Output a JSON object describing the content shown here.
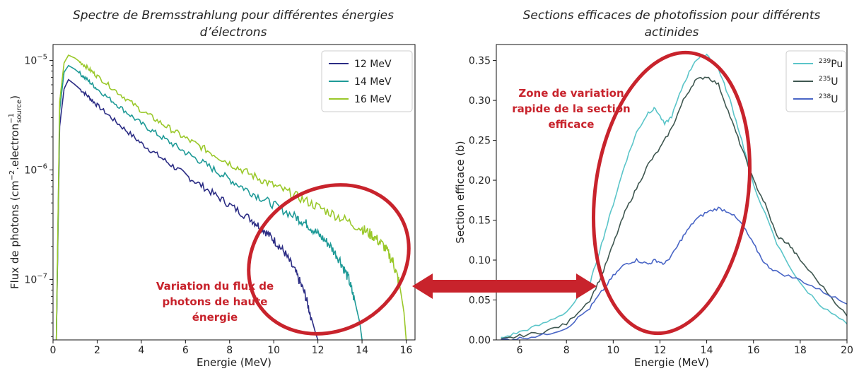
{
  "left_title": [
    "Spectre de Bremsstrahlung pour différentes énergies",
    "d’électrons"
  ],
  "right_title": [
    "Sections efficaces de photofission pour différents",
    "actinides"
  ],
  "annotations": {
    "left": [
      "Variation du flux de",
      "photons de haute",
      "énergie"
    ],
    "right": [
      "Zone de variation",
      "rapide de la section",
      "efficace"
    ],
    "color": "#c8232c"
  },
  "chart_data": [
    {
      "type": "line",
      "title": "Spectre de Bremsstrahlung pour différentes énergies d’électrons",
      "xlabel": "Energie (MeV)",
      "ylabel": "Flux de photons (cm",
      "ylabel_sup1": "−2",
      "ylabel_mid": ".electron",
      "ylabel_sub": "source",
      "ylabel_sup2": "−1",
      "ylabel_end": ")",
      "xlim": [
        0,
        16.4
      ],
      "ylim": [
        2.8e-08,
        1.4e-05
      ],
      "yscale": "log",
      "xticks": [
        0,
        2,
        4,
        6,
        8,
        10,
        12,
        14,
        16
      ],
      "yticks": [
        {
          "value": 1e-07,
          "mant": "10",
          "exp": "−7"
        },
        {
          "value": 1e-06,
          "mant": "10",
          "exp": "−6"
        },
        {
          "value": 1e-05,
          "mant": "10",
          "exp": "−5"
        }
      ],
      "legend": "top-right",
      "series": [
        {
          "name": "12 MeV",
          "color": "#2b2c84",
          "x": [
            0.15,
            0.3,
            0.5,
            0.7,
            1.0,
            1.5,
            2,
            3,
            4,
            5,
            6,
            7,
            8,
            9,
            9.5,
            10,
            10.5,
            11,
            11.4,
            11.7,
            11.9,
            12.0
          ],
          "y": [
            2.8e-08,
            2.5e-06,
            5.5e-06,
            6.7e-06,
            6e-06,
            4.9e-06,
            3.9e-06,
            2.6e-06,
            1.75e-06,
            1.25e-06,
            9e-07,
            6.6e-07,
            4.8e-07,
            3.5e-07,
            2.9e-07,
            2.3e-07,
            1.75e-07,
            1.15e-07,
            7.5e-08,
            4.5e-08,
            3.2e-08,
            2.8e-08
          ]
        },
        {
          "name": "14 MeV",
          "color": "#1e9a97",
          "x": [
            0.15,
            0.3,
            0.5,
            0.7,
            1.0,
            1.5,
            2,
            3,
            4,
            5,
            6,
            7,
            8,
            9,
            10,
            11,
            11.5,
            12,
            12.5,
            13,
            13.4,
            13.7,
            13.9,
            14.0
          ],
          "y": [
            2.8e-08,
            3.5e-06,
            7.8e-06,
            9e-06,
            8.3e-06,
            6.8e-06,
            5.5e-06,
            3.8e-06,
            2.65e-06,
            1.95e-06,
            1.45e-06,
            1.1e-06,
            8.2e-07,
            6.2e-07,
            4.8e-07,
            3.7e-07,
            3.2e-07,
            2.6e-07,
            2.1e-07,
            1.5e-07,
            1e-07,
            6e-08,
            4e-08,
            2.8e-08
          ]
        },
        {
          "name": "16 MeV",
          "color": "#9ac82a",
          "x": [
            0.15,
            0.3,
            0.5,
            0.7,
            1.0,
            1.5,
            2,
            3,
            4,
            5,
            6,
            7,
            8,
            9,
            10,
            11,
            12,
            13,
            14,
            14.5,
            15,
            15.4,
            15.7,
            15.9,
            16.0
          ],
          "y": [
            2.8e-08,
            4.2e-06,
            9.5e-06,
            1.12e-05,
            1.05e-05,
            8.8e-06,
            7.2e-06,
            5e-06,
            3.5e-06,
            2.6e-06,
            1.95e-06,
            1.5e-06,
            1.15e-06,
            9e-07,
            7.2e-07,
            5.8e-07,
            4.6e-07,
            3.7e-07,
            2.9e-07,
            2.5e-07,
            2e-07,
            1.45e-07,
            9e-08,
            5e-08,
            2.8e-08
          ]
        }
      ]
    },
    {
      "type": "line",
      "title": "Sections efficaces de photofission pour différents actinides",
      "xlabel": "Energie (MeV)",
      "ylabel": "Section efficace (b)",
      "xlim": [
        5,
        20
      ],
      "ylim": [
        0,
        0.37
      ],
      "xticks": [
        6,
        8,
        10,
        12,
        14,
        16,
        18,
        20
      ],
      "yticks": [
        0.0,
        0.05,
        0.1,
        0.15,
        0.2,
        0.25,
        0.3,
        0.35
      ],
      "legend": "top-right",
      "series": [
        {
          "name": "Pu",
          "sup": "239",
          "color": "#5bc5c9",
          "x": [
            5.2,
            6,
            7,
            8,
            9,
            9.5,
            10,
            10.5,
            11,
            11.5,
            11.8,
            12.2,
            12.5,
            13,
            13.5,
            14,
            14.5,
            15,
            15.5,
            16,
            17,
            18,
            19,
            20
          ],
          "y": [
            0.002,
            0.01,
            0.02,
            0.035,
            0.07,
            0.12,
            0.17,
            0.22,
            0.26,
            0.285,
            0.29,
            0.27,
            0.28,
            0.32,
            0.35,
            0.358,
            0.34,
            0.3,
            0.25,
            0.195,
            0.12,
            0.07,
            0.04,
            0.02
          ]
        },
        {
          "name": "U",
          "sup": "235",
          "color": "#3f5750",
          "x": [
            5.2,
            6,
            7,
            8,
            9,
            9.5,
            10,
            10.5,
            11,
            11.5,
            12,
            12.5,
            13,
            13.5,
            14,
            14.5,
            15,
            15.5,
            16,
            16.5,
            17,
            17.5,
            18,
            19,
            20
          ],
          "y": [
            0.0,
            0.005,
            0.01,
            0.02,
            0.05,
            0.08,
            0.12,
            0.16,
            0.19,
            0.22,
            0.24,
            0.265,
            0.3,
            0.325,
            0.33,
            0.32,
            0.28,
            0.24,
            0.2,
            0.17,
            0.13,
            0.12,
            0.1,
            0.065,
            0.03
          ]
        },
        {
          "name": "U",
          "sup": "238",
          "color": "#4a66c6",
          "x": [
            5.2,
            6,
            7,
            8,
            9,
            9.5,
            10,
            10.5,
            11,
            11.5,
            11.8,
            12.2,
            12.6,
            13,
            13.5,
            14,
            14.5,
            15,
            15.5,
            16,
            16.5,
            17,
            18,
            19,
            20
          ],
          "y": [
            0.0,
            0.002,
            0.006,
            0.015,
            0.04,
            0.06,
            0.08,
            0.095,
            0.1,
            0.095,
            0.1,
            0.095,
            0.11,
            0.13,
            0.15,
            0.16,
            0.165,
            0.16,
            0.145,
            0.12,
            0.095,
            0.085,
            0.075,
            0.06,
            0.045
          ]
        }
      ]
    }
  ]
}
